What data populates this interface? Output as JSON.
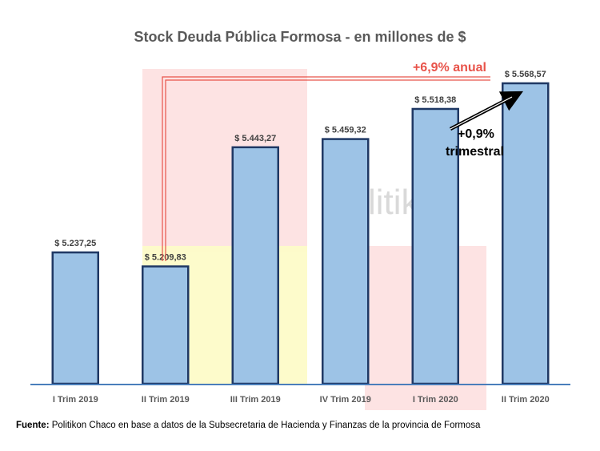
{
  "chart_data": {
    "type": "bar",
    "title": "Stock Deuda Pública Formosa - en millones de $",
    "categories": [
      "I Trim 2019",
      "II Trim 2019",
      "III Trim 2019",
      "IV Trim 2019",
      "I Trim 2020",
      "II Trim 2020"
    ],
    "values": [
      5237.25,
      5209.83,
      5443.27,
      5459.32,
      5518.38,
      5568.57
    ],
    "value_labels": [
      "$ 5.237,25",
      "$ 5.209,83",
      "$ 5.443,27",
      "$ 5.459,32",
      "$ 5.518,38",
      "$ 5.568,57"
    ],
    "annotations": {
      "annual": "+6,9% anual",
      "quarterly_line1": "+0,9%",
      "quarterly_line2": "trimestral"
    },
    "watermark": "litikon",
    "colors": {
      "bar_fill": "#9dc3e6",
      "bar_stroke": "#1f3864",
      "axis": "#4a7ebb",
      "annotation_red": "#e8534a"
    },
    "xlabel": "",
    "ylabel": "",
    "grid": false
  },
  "footnote": {
    "label": "Fuente:",
    "text": " Politikon Chaco en base a datos de la Subsecretaria de Hacienda y Finanzas de la provincia de Formosa"
  }
}
